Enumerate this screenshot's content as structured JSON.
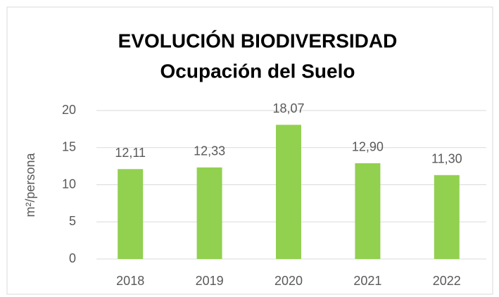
{
  "chart_data": {
    "type": "bar",
    "title": "EVOLUCIÓN BIODIVERSIDAD",
    "subtitle": "Ocupación del Suelo",
    "y_label": "m²/persona",
    "categories": [
      "2018",
      "2019",
      "2020",
      "2021",
      "2022"
    ],
    "values": [
      12.11,
      12.33,
      18.07,
      12.9,
      11.3
    ],
    "value_labels": [
      "12,11",
      "12,33",
      "18,07",
      "12,90",
      "11,30"
    ],
    "color": "#92d050",
    "ylim": [
      0,
      20
    ],
    "yticks": [
      0,
      5,
      10,
      15,
      20
    ],
    "grid": true
  }
}
